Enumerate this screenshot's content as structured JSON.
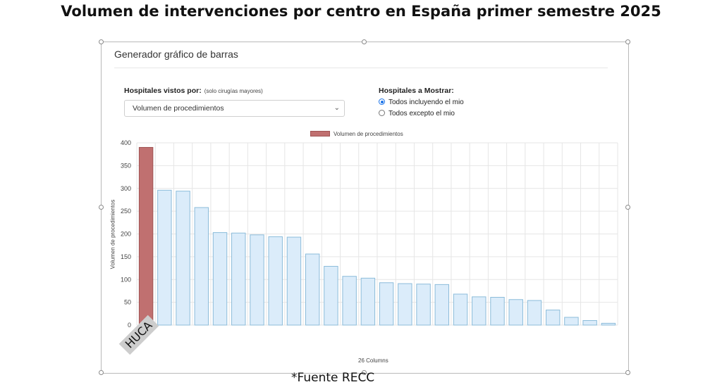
{
  "page": {
    "title": "Volumen de intervenciones por centro en España primer semestre 2025",
    "source": "*Fuente RECC"
  },
  "panel": {
    "title": "Generador gráfico de barras",
    "hospitals_by": {
      "label": "Hospitales vistos por:",
      "note": "(solo cirugías mayores)",
      "selected": "Volumen de procedimientos"
    },
    "show": {
      "label": "Hospitales a Mostrar:",
      "options": [
        {
          "label": "Todos incluyendo el mio",
          "checked": true
        },
        {
          "label": "Todos excepto el mio",
          "checked": false
        }
      ]
    }
  },
  "chart_data": {
    "type": "bar",
    "categories": [
      "HUCA",
      "",
      "",
      "",
      "",
      "",
      "",
      "",
      "",
      "",
      "",
      "",
      "",
      "",
      "",
      "",
      "",
      "",
      "",
      "",
      "",
      "",
      "",
      "",
      "",
      ""
    ],
    "series": [
      {
        "name": "Volumen de procedimientos",
        "values": [
          390,
          296,
          294,
          258,
          203,
          202,
          198,
          194,
          193,
          156,
          129,
          107,
          103,
          93,
          91,
          90,
          89,
          68,
          62,
          61,
          56,
          54,
          33,
          17,
          10,
          4
        ]
      }
    ],
    "highlight_index": 0,
    "xlabel": "26 Columns",
    "ylabel": "Volumen de procedimientos",
    "ylim": [
      0,
      400
    ],
    "yticks": [
      0,
      50,
      100,
      150,
      200,
      250,
      300,
      350,
      400
    ],
    "grid": true,
    "legend_position": "top-center",
    "colors": {
      "highlight_fill": "#c07070",
      "highlight_stroke": "#a05454",
      "bar_fill": "#dbecfa",
      "bar_stroke": "#8cbcda",
      "grid": "#e6e6e6"
    }
  }
}
